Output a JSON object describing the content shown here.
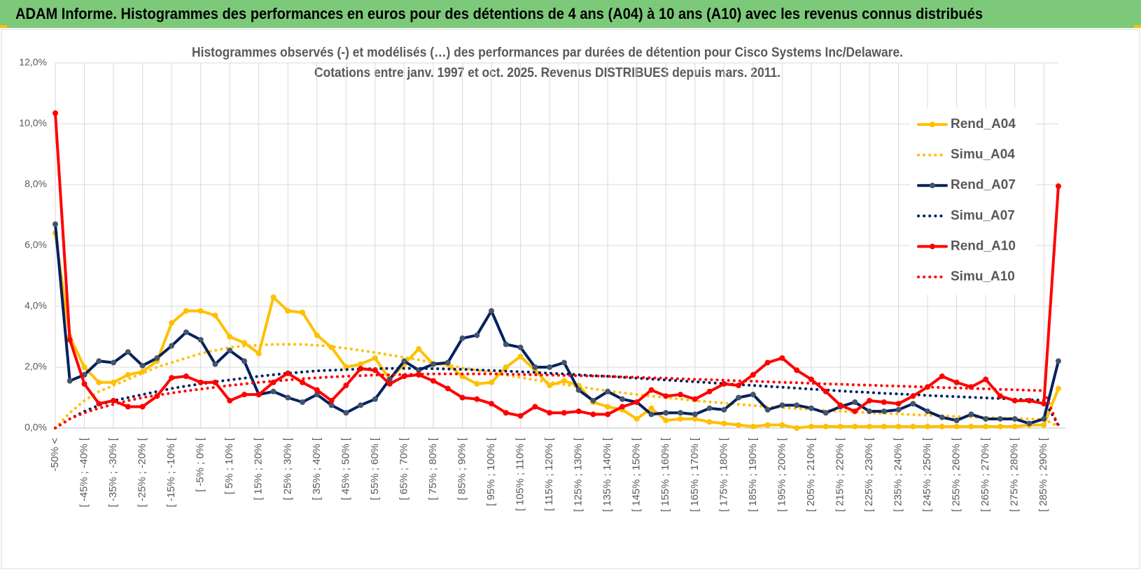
{
  "header": {
    "title": "ADAM Informe. Histogrammes des performances en euros pour des détentions de 4 ans (A04) à 10 ans (A10) avec les revenus connus distribués"
  },
  "chart_data": {
    "type": "line",
    "title": "Histogrammes observés (-) et modélisés (…) des performances par durées de détention pour Cisco Systems Inc/Delaware.",
    "subtitle": "Cotations entre janv. 1997 et oct. 2025.  Revenus DISTRIBUES depuis mars. 2011.",
    "categories": [
      "-50% <",
      null,
      "[ -45% ; -40% [",
      null,
      "[ -35% ; -30% [",
      null,
      "[ -25% ; -20% [",
      null,
      "[ -15% ; -10% [",
      null,
      "[ -5% ; 0% [",
      null,
      "[ 5% ; 10% [",
      null,
      "[ 15% ; 20% [",
      null,
      "[ 25% ; 30% [",
      null,
      "[ 35% ; 40% [",
      null,
      "[ 45% ; 50% [",
      null,
      "[ 55% ; 60% [",
      null,
      "[ 65% ; 70% [",
      null,
      "[ 75% ; 80% [",
      null,
      "[ 85% ; 90% [",
      null,
      "[ 95% ; 100% [",
      null,
      "[ 105% ; 110% [",
      null,
      "[ 115% ; 120% [",
      null,
      "[ 125% ; 130% [",
      null,
      "[ 135% ; 140% [",
      null,
      "[ 145% ; 150% [",
      null,
      "[ 155% ; 160% [",
      null,
      "[ 165% ; 170% [",
      null,
      "[ 175% ; 180% [",
      null,
      "[ 185% ; 190% [",
      null,
      "[ 195% ; 200% [",
      null,
      "[ 205% ; 210% [",
      null,
      "[ 215% ; 220% [",
      null,
      "[ 225% ; 230% [",
      null,
      "[ 235% ; 240% [",
      null,
      "[ 245% ; 250% [",
      null,
      "[ 255% ; 260% [",
      null,
      "[ 265% ; 270% [",
      null,
      "[ 275% ; 280% [",
      null,
      "[ 285% ; 290% [",
      null
    ],
    "ylim": [
      0,
      12
    ],
    "yticks": [
      {
        "value": 0,
        "label": "0,0%"
      },
      {
        "value": 2,
        "label": "2,0%"
      },
      {
        "value": 4,
        "label": "4,0%"
      },
      {
        "value": 6,
        "label": "6,0%"
      },
      {
        "value": 8,
        "label": "8,0%"
      },
      {
        "value": 10,
        "label": "10,0%"
      },
      {
        "value": 12,
        "label": "12,0%"
      }
    ],
    "grid": true,
    "legend": "right",
    "series": [
      {
        "name": "Rend_A04",
        "color": "#ffc000",
        "style": "solid",
        "values": [
          6.4,
          3.0,
          2.0,
          1.5,
          1.5,
          1.75,
          1.85,
          2.2,
          3.45,
          3.85,
          3.85,
          3.7,
          3.0,
          2.8,
          2.45,
          4.3,
          3.85,
          3.8,
          3.05,
          2.65,
          2.0,
          2.1,
          2.3,
          1.6,
          2.1,
          2.6,
          2.1,
          2.1,
          1.7,
          1.45,
          1.5,
          2.0,
          2.35,
          1.9,
          1.4,
          1.55,
          1.4,
          0.85,
          0.7,
          0.6,
          0.3,
          0.65,
          0.25,
          0.3,
          0.3,
          0.2,
          0.15,
          0.1,
          0.05,
          0.1,
          0.1,
          0.0,
          0.05,
          0.05,
          0.05,
          0.05,
          0.05,
          0.05,
          0.05,
          0.05,
          0.05,
          0.05,
          0.05,
          0.05,
          0.05,
          0.05,
          0.05,
          0.1,
          0.1,
          1.3
        ]
      },
      {
        "name": "Simu_A04",
        "color": "#ffc000",
        "style": "dotted",
        "values": [
          0,
          0.5,
          0.9,
          1.2,
          1.4,
          1.6,
          1.8,
          2.0,
          2.15,
          2.3,
          2.45,
          2.55,
          2.65,
          2.7,
          2.72,
          2.75,
          2.75,
          2.75,
          2.72,
          2.68,
          2.62,
          2.55,
          2.48,
          2.4,
          2.32,
          2.24,
          2.15,
          2.07,
          1.98,
          1.9,
          1.82,
          1.74,
          1.66,
          1.58,
          1.5,
          1.43,
          1.36,
          1.29,
          1.22,
          1.16,
          1.1,
          1.05,
          1.0,
          0.95,
          0.9,
          0.86,
          0.82,
          0.78,
          0.74,
          0.7,
          0.67,
          0.64,
          0.61,
          0.58,
          0.55,
          0.53,
          0.5,
          0.48,
          0.46,
          0.44,
          0.42,
          0.4,
          0.38,
          0.36,
          0.35,
          0.33,
          0.32,
          0.3,
          0.29,
          0.05
        ]
      },
      {
        "name": "Rend_A07",
        "color": "#002060",
        "style": "solid",
        "values": [
          6.7,
          1.55,
          1.75,
          2.2,
          2.15,
          2.5,
          2.05,
          2.3,
          2.7,
          3.15,
          2.9,
          2.1,
          2.55,
          2.2,
          1.1,
          1.2,
          1.0,
          0.85,
          1.1,
          0.75,
          0.5,
          0.75,
          0.95,
          1.6,
          2.2,
          1.9,
          2.1,
          2.15,
          2.95,
          3.05,
          3.85,
          2.75,
          2.65,
          2.0,
          2.0,
          2.15,
          1.25,
          0.9,
          1.2,
          0.95,
          0.85,
          0.45,
          0.5,
          0.5,
          0.45,
          0.65,
          0.6,
          1.0,
          1.1,
          0.6,
          0.75,
          0.75,
          0.65,
          0.5,
          0.7,
          0.85,
          0.55,
          0.55,
          0.6,
          0.8,
          0.55,
          0.35,
          0.25,
          0.45,
          0.3,
          0.3,
          0.3,
          0.15,
          0.3,
          2.2
        ]
      },
      {
        "name": "Simu_A07",
        "color": "#002060",
        "style": "dotted",
        "values": [
          0,
          0.3,
          0.55,
          0.75,
          0.9,
          1.0,
          1.1,
          1.2,
          1.3,
          1.38,
          1.45,
          1.52,
          1.58,
          1.64,
          1.7,
          1.75,
          1.8,
          1.84,
          1.88,
          1.9,
          1.92,
          1.94,
          1.95,
          1.96,
          1.96,
          1.96,
          1.95,
          1.94,
          1.93,
          1.91,
          1.89,
          1.87,
          1.85,
          1.83,
          1.8,
          1.78,
          1.75,
          1.72,
          1.7,
          1.67,
          1.64,
          1.61,
          1.58,
          1.55,
          1.52,
          1.49,
          1.46,
          1.43,
          1.4,
          1.37,
          1.34,
          1.31,
          1.28,
          1.25,
          1.22,
          1.19,
          1.17,
          1.14,
          1.12,
          1.1,
          1.07,
          1.05,
          1.03,
          1.01,
          0.99,
          0.97,
          0.95,
          0.93,
          0.91,
          0.1
        ]
      },
      {
        "name": "Rend_A10",
        "color": "#ff0000",
        "style": "solid",
        "values": [
          10.35,
          2.9,
          1.45,
          0.8,
          0.9,
          0.7,
          0.7,
          1.05,
          1.65,
          1.7,
          1.5,
          1.5,
          0.9,
          1.1,
          1.1,
          1.5,
          1.8,
          1.5,
          1.25,
          0.9,
          1.4,
          1.95,
          1.9,
          1.45,
          1.7,
          1.75,
          1.55,
          1.3,
          1.0,
          0.95,
          0.8,
          0.5,
          0.4,
          0.7,
          0.5,
          0.5,
          0.55,
          0.45,
          0.45,
          0.7,
          0.85,
          1.25,
          1.05,
          1.1,
          0.95,
          1.2,
          1.45,
          1.4,
          1.75,
          2.15,
          2.3,
          1.9,
          1.6,
          1.2,
          0.75,
          0.55,
          0.9,
          0.85,
          0.8,
          1.05,
          1.35,
          1.7,
          1.5,
          1.35,
          1.6,
          1.05,
          0.9,
          0.9,
          0.8,
          7.95
        ]
      },
      {
        "name": "Simu_A10",
        "color": "#ff0000",
        "style": "dotted",
        "values": [
          0,
          0.3,
          0.5,
          0.65,
          0.78,
          0.9,
          1.0,
          1.08,
          1.15,
          1.22,
          1.28,
          1.34,
          1.4,
          1.45,
          1.5,
          1.54,
          1.58,
          1.62,
          1.65,
          1.68,
          1.7,
          1.72,
          1.74,
          1.75,
          1.76,
          1.77,
          1.78,
          1.78,
          1.78,
          1.78,
          1.78,
          1.77,
          1.76,
          1.75,
          1.74,
          1.73,
          1.72,
          1.71,
          1.7,
          1.68,
          1.67,
          1.65,
          1.64,
          1.62,
          1.6,
          1.59,
          1.57,
          1.55,
          1.54,
          1.52,
          1.5,
          1.49,
          1.47,
          1.45,
          1.44,
          1.42,
          1.41,
          1.39,
          1.38,
          1.36,
          1.35,
          1.33,
          1.32,
          1.3,
          1.29,
          1.27,
          1.26,
          1.24,
          1.23,
          0.05
        ]
      }
    ]
  }
}
